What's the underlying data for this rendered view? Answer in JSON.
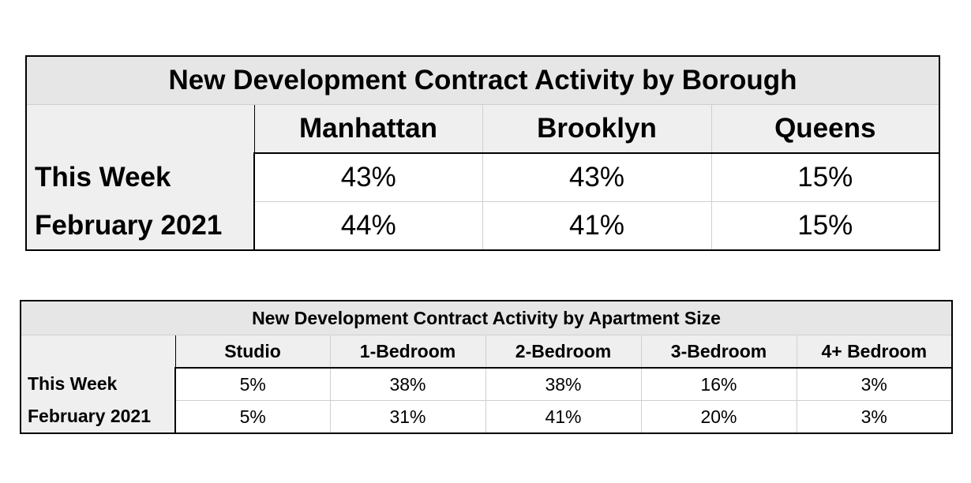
{
  "borough_table": {
    "title": "New Development Contract Activity by Borough",
    "columns": [
      "",
      "Manhattan",
      "Brooklyn",
      "Queens"
    ],
    "rows": [
      {
        "label": "This Week",
        "values": [
          "43%",
          "43%",
          "15%"
        ]
      },
      {
        "label": "February 2021",
        "values": [
          "44%",
          "41%",
          "15%"
        ]
      }
    ]
  },
  "size_table": {
    "title": "New Development Contract Activity by Apartment Size",
    "columns": [
      "",
      "Studio",
      "1-Bedroom",
      "2-Bedroom",
      "3-Bedroom",
      "4+ Bedroom"
    ],
    "rows": [
      {
        "label": "This Week",
        "values": [
          "5%",
          "38%",
          "38%",
          "16%",
          "3%"
        ]
      },
      {
        "label": "February 2021",
        "values": [
          "5%",
          "31%",
          "41%",
          "20%",
          "3%"
        ]
      }
    ]
  },
  "colors": {
    "title_bg": "#e6e6e6",
    "header_bg": "#efefef",
    "cell_bg": "#ffffff",
    "border": "#000000",
    "gridline": "#cfcfcf"
  }
}
